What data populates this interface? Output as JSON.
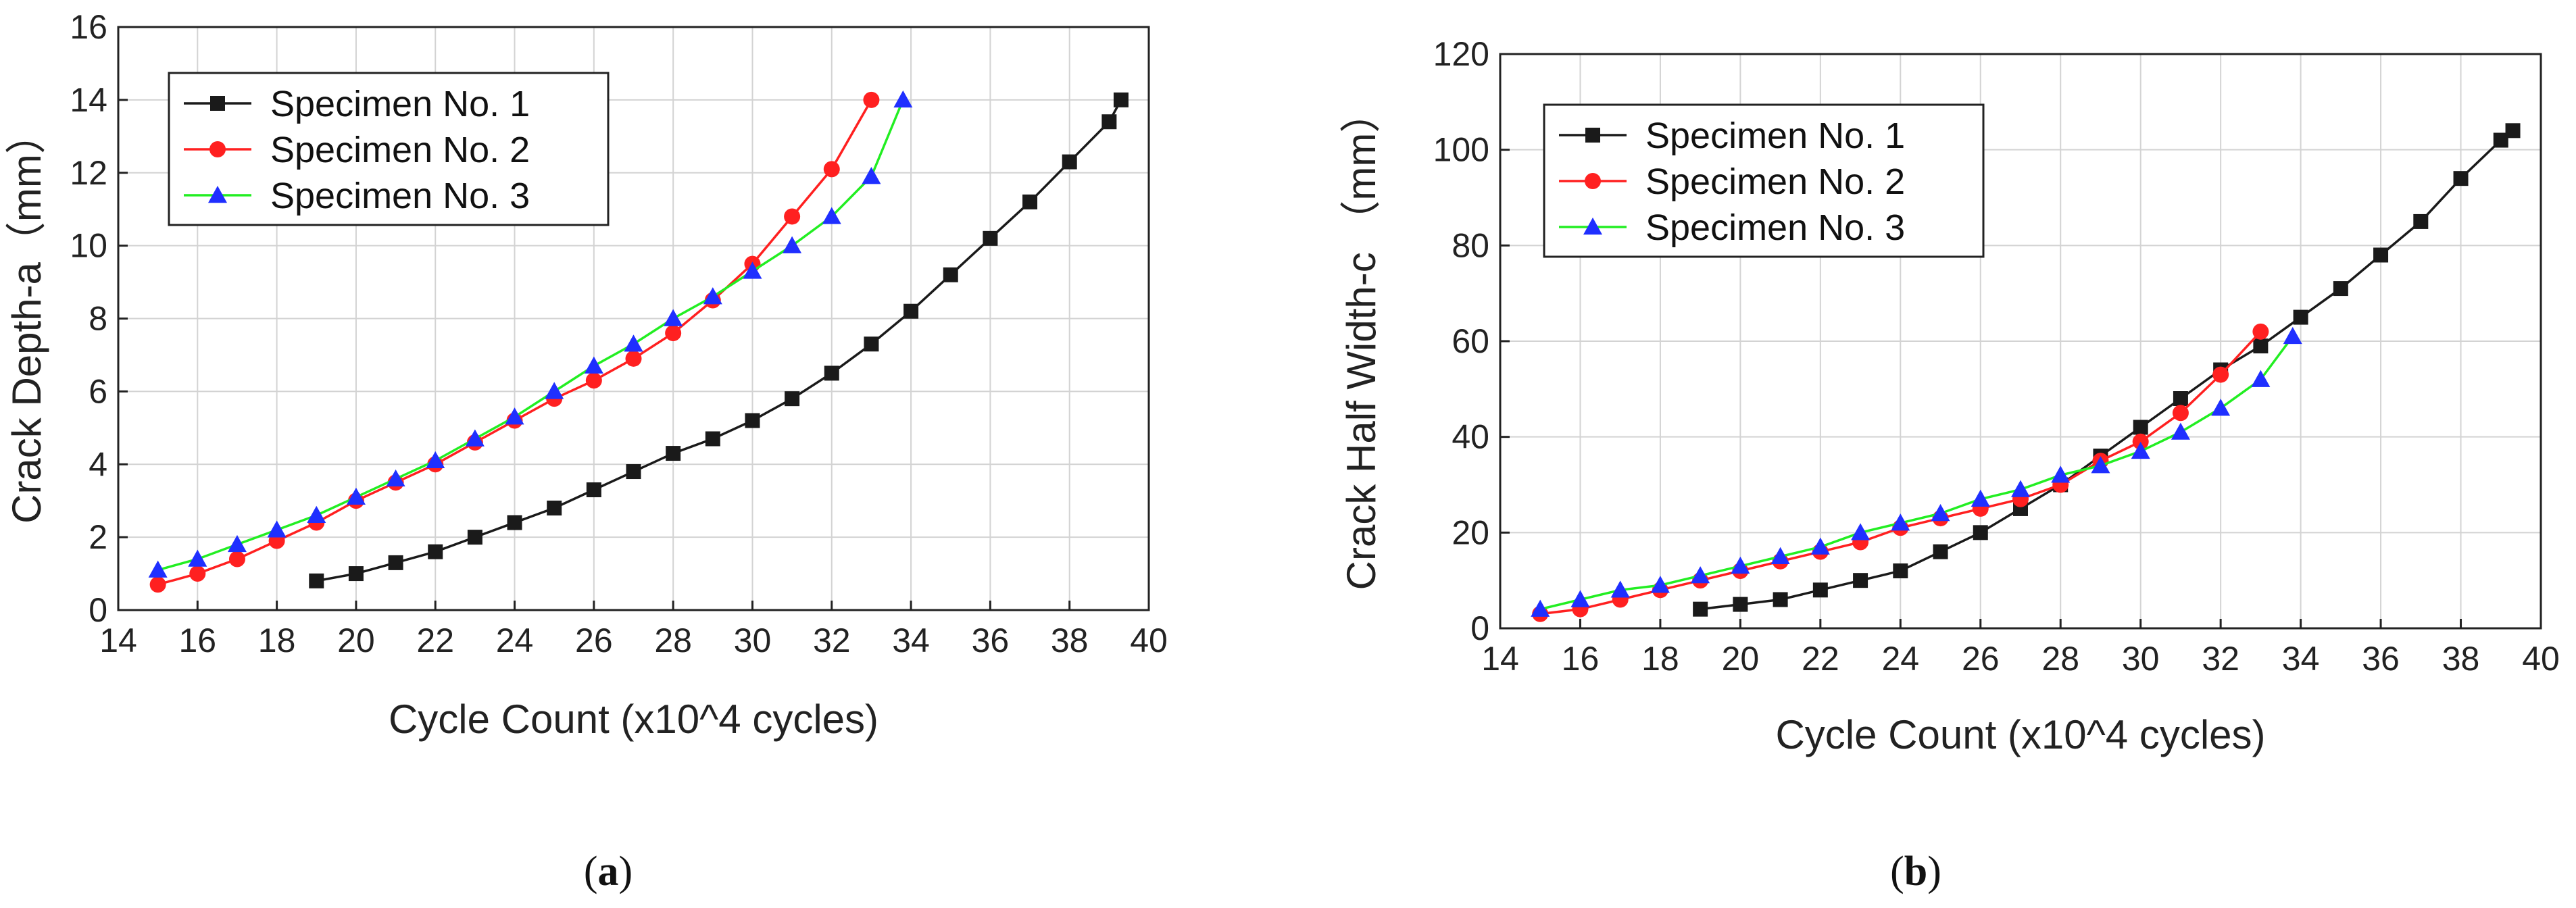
{
  "figure": {
    "caption_a": "a",
    "caption_b": "b",
    "caption_open": "(",
    "caption_close": ")"
  },
  "chart_data": [
    {
      "type": "line",
      "id": "a",
      "xlabel": "Cycle Count (x10^4 cycles)",
      "ylabel": "Crack Depth-a（mm）",
      "xlim": [
        14,
        40
      ],
      "ylim": [
        0,
        16
      ],
      "xticks": [
        14,
        16,
        18,
        20,
        22,
        24,
        26,
        28,
        30,
        32,
        34,
        36,
        38,
        40
      ],
      "yticks": [
        0,
        2,
        4,
        6,
        8,
        10,
        12,
        14,
        16
      ],
      "grid": true,
      "legend": "top-left",
      "series": [
        {
          "name": "Specimen No. 1",
          "color": "#1a1a1a",
          "marker": "square",
          "x": [
            19,
            20,
            21,
            22,
            23,
            24,
            25,
            26,
            27,
            28,
            29,
            30,
            31,
            32,
            33,
            34,
            35,
            36,
            37,
            38,
            39,
            39.3
          ],
          "y": [
            0.8,
            1.0,
            1.3,
            1.6,
            2.0,
            2.4,
            2.8,
            3.3,
            3.8,
            4.3,
            4.7,
            5.2,
            5.8,
            6.5,
            7.3,
            8.2,
            9.2,
            10.2,
            11.2,
            12.3,
            13.4,
            14.0
          ]
        },
        {
          "name": "Specimen No. 2",
          "color": "#ff2020",
          "marker": "circle",
          "x": [
            15,
            16,
            17,
            18,
            19,
            20,
            21,
            22,
            23,
            24,
            25,
            26,
            27,
            28,
            29,
            30,
            31,
            32,
            33
          ],
          "y": [
            0.7,
            1.0,
            1.4,
            1.9,
            2.4,
            3.0,
            3.5,
            4.0,
            4.6,
            5.2,
            5.8,
            6.3,
            6.9,
            7.6,
            8.5,
            9.5,
            10.8,
            12.1,
            14.0
          ]
        },
        {
          "name": "Specimen No. 3",
          "color": "#22ee22",
          "marker": "triangle",
          "x": [
            15,
            16,
            17,
            18,
            19,
            20,
            21,
            22,
            23,
            24,
            25,
            26,
            27,
            28,
            29,
            30,
            31,
            32,
            33,
            33.8
          ],
          "y": [
            1.1,
            1.4,
            1.8,
            2.2,
            2.6,
            3.1,
            3.6,
            4.1,
            4.7,
            5.3,
            6.0,
            6.7,
            7.3,
            8.0,
            8.6,
            9.3,
            10.0,
            10.8,
            11.9,
            14.0
          ]
        }
      ]
    },
    {
      "type": "line",
      "id": "b",
      "xlabel": "Cycle Count (x10^4 cycles)",
      "ylabel": "Crack Half Width-c （mm）",
      "xlim": [
        14,
        40
      ],
      "ylim": [
        0,
        120
      ],
      "xticks": [
        14,
        16,
        18,
        20,
        22,
        24,
        26,
        28,
        30,
        32,
        34,
        36,
        38,
        40
      ],
      "yticks": [
        0,
        20,
        40,
        60,
        80,
        100,
        120
      ],
      "grid": true,
      "legend": "top-left",
      "series": [
        {
          "name": "Specimen No. 1",
          "color": "#1a1a1a",
          "marker": "square",
          "x": [
            19,
            20,
            21,
            22,
            23,
            24,
            25,
            26,
            27,
            28,
            29,
            30,
            31,
            32,
            33,
            34,
            35,
            36,
            37,
            38,
            39,
            39.3
          ],
          "y": [
            4,
            5,
            6,
            8,
            10,
            12,
            16,
            20,
            25,
            30,
            36,
            42,
            48,
            54,
            59,
            65,
            71,
            78,
            85,
            94,
            102,
            104
          ]
        },
        {
          "name": "Specimen No. 2",
          "color": "#ff2020",
          "marker": "circle",
          "x": [
            15,
            16,
            17,
            18,
            19,
            20,
            21,
            22,
            23,
            24,
            25,
            26,
            27,
            28,
            29,
            30,
            31,
            32,
            33
          ],
          "y": [
            3,
            4,
            6,
            8,
            10,
            12,
            14,
            16,
            18,
            21,
            23,
            25,
            27,
            30,
            35,
            39,
            45,
            53,
            62
          ]
        },
        {
          "name": "Specimen No. 3",
          "color": "#22ee22",
          "marker": "triangle",
          "x": [
            15,
            16,
            17,
            18,
            19,
            20,
            21,
            22,
            23,
            24,
            25,
            26,
            27,
            28,
            29,
            30,
            31,
            32,
            33,
            33.8
          ],
          "y": [
            4,
            6,
            8,
            9,
            11,
            13,
            15,
            17,
            20,
            22,
            24,
            27,
            29,
            32,
            34,
            37,
            41,
            46,
            52,
            61
          ]
        }
      ]
    }
  ]
}
